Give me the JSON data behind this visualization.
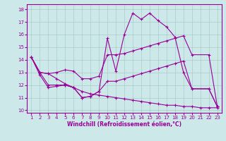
{
  "xlabel": "Windchill (Refroidissement éolien,°C)",
  "bg_color": "#cce8e8",
  "line_color": "#990099",
  "grid_color": "#aacccc",
  "xlim_min": 0.5,
  "xlim_max": 23.5,
  "ylim_min": 9.8,
  "ylim_max": 18.4,
  "xticks": [
    1,
    2,
    3,
    4,
    5,
    6,
    7,
    8,
    9,
    10,
    11,
    12,
    13,
    14,
    15,
    16,
    17,
    18,
    19,
    20,
    21,
    22,
    23
  ],
  "yticks": [
    10,
    11,
    12,
    13,
    14,
    15,
    16,
    17,
    18
  ],
  "series": [
    {
      "x": [
        1,
        2,
        3,
        4,
        5,
        6,
        7,
        8,
        9,
        10,
        11,
        12,
        13,
        14,
        15,
        16,
        17,
        18,
        19,
        20,
        22,
        23
      ],
      "y": [
        14.2,
        12.8,
        11.8,
        11.9,
        12.0,
        11.8,
        11.0,
        11.1,
        11.5,
        15.7,
        13.1,
        16.0,
        17.7,
        17.2,
        17.7,
        17.1,
        16.6,
        15.8,
        13.0,
        11.7,
        11.7,
        10.3
      ]
    },
    {
      "x": [
        1,
        2,
        3,
        4,
        5,
        6,
        7,
        8,
        9,
        10,
        11,
        12,
        13,
        14,
        15,
        16,
        17,
        18,
        19,
        20,
        22,
        23
      ],
      "y": [
        14.2,
        13.0,
        12.9,
        13.0,
        13.2,
        13.1,
        12.5,
        12.5,
        12.7,
        14.4,
        14.4,
        14.5,
        14.7,
        14.9,
        15.1,
        15.3,
        15.5,
        15.7,
        15.9,
        14.4,
        14.4,
        10.3
      ]
    },
    {
      "x": [
        1,
        2,
        3,
        4,
        5,
        6,
        7,
        8,
        9,
        10,
        11,
        12,
        13,
        14,
        15,
        16,
        17,
        18,
        19,
        20,
        22,
        23
      ],
      "y": [
        14.2,
        13.0,
        12.0,
        12.0,
        12.0,
        11.8,
        11.0,
        11.1,
        11.5,
        12.3,
        12.3,
        12.5,
        12.7,
        12.9,
        13.1,
        13.3,
        13.5,
        13.7,
        13.9,
        11.7,
        11.7,
        10.3
      ]
    },
    {
      "x": [
        1,
        2,
        3,
        4,
        5,
        6,
        7,
        8,
        9,
        10,
        11,
        12,
        13,
        14,
        15,
        16,
        17,
        18,
        19,
        20,
        21,
        22,
        23
      ],
      "y": [
        14.2,
        13.0,
        12.9,
        12.5,
        12.1,
        11.8,
        11.5,
        11.3,
        11.2,
        11.1,
        11.0,
        10.9,
        10.8,
        10.7,
        10.6,
        10.5,
        10.4,
        10.4,
        10.3,
        10.3,
        10.2,
        10.2,
        10.2
      ]
    }
  ]
}
